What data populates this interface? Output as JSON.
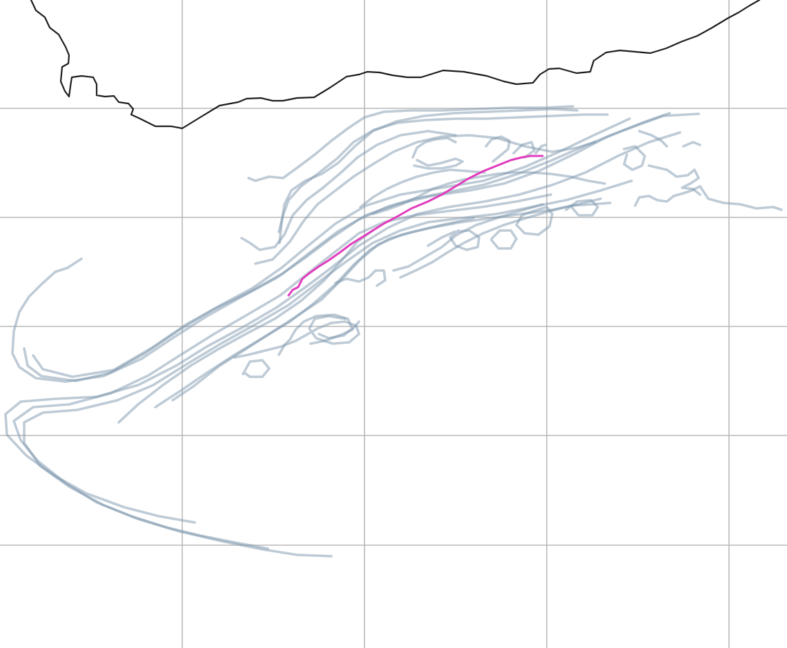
{
  "map": {
    "description_visible_text": "",
    "layers": {
      "graticule": {
        "color": "#b9b9b9"
      },
      "coastline": {
        "color": "#1c1c1c"
      },
      "ensemble_tracks": {
        "color": "#7e98ae",
        "opacity": 0.5
      },
      "highlighted_track": {
        "color": "#e13bbd"
      }
    }
  }
}
